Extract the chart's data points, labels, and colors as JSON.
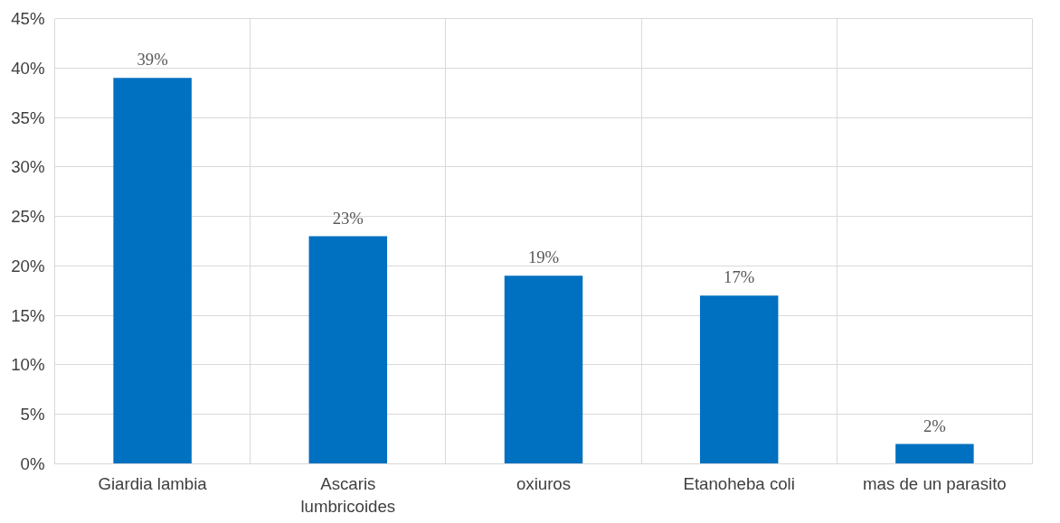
{
  "chart_data": {
    "type": "bar",
    "categories": [
      "Giardia lambia",
      "Ascaris lumbricoides",
      "oxiuros",
      "Etanoheba coli",
      "mas de un parasito"
    ],
    "values": [
      39,
      23,
      19,
      17,
      2
    ],
    "value_labels": [
      "39%",
      "23%",
      "19%",
      "17%",
      "2%"
    ],
    "color": "#0070c0",
    "ylim": [
      0,
      45
    ],
    "yticks": [
      {
        "value": 0,
        "label": "0%"
      },
      {
        "value": 5,
        "label": "5%"
      },
      {
        "value": 10,
        "label": "10%"
      },
      {
        "value": 15,
        "label": "15%"
      },
      {
        "value": 20,
        "label": "20%"
      },
      {
        "value": 25,
        "label": "25%"
      },
      {
        "value": 30,
        "label": "30%"
      },
      {
        "value": 35,
        "label": "35%"
      },
      {
        "value": 40,
        "label": "40%"
      },
      {
        "value": 45,
        "label": "45%"
      }
    ],
    "grid": true
  }
}
